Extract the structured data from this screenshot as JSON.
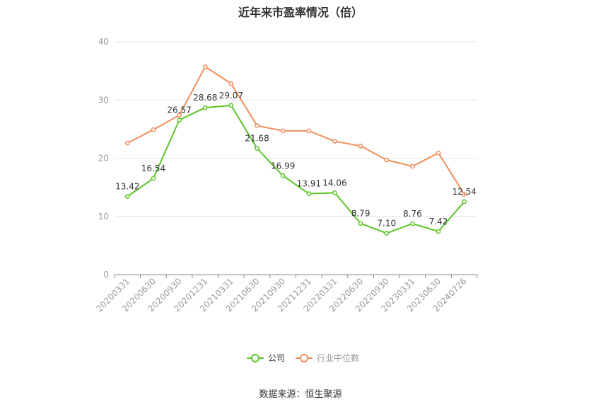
{
  "chart_data": {
    "type": "line",
    "title": "近年来市盈率情况（倍）",
    "categories": [
      "20200331",
      "20200630",
      "20200930",
      "20201231",
      "20210331",
      "20210630",
      "20210930",
      "20211231",
      "20220331",
      "20220630",
      "20220930",
      "20230331",
      "20230630",
      "20240726"
    ],
    "series": [
      {
        "name": "公司",
        "color": "#5ec427",
        "values": [
          13.42,
          16.54,
          26.57,
          28.68,
          29.07,
          21.68,
          16.99,
          13.91,
          14.06,
          8.79,
          7.1,
          8.76,
          7.42,
          12.54
        ],
        "labels": [
          "13.42",
          "16.54",
          "26.57",
          "28.68",
          "29.07",
          "21.68",
          "16.99",
          "13.91",
          "14.06",
          "8.79",
          "7.10",
          "8.76",
          "7.42",
          "12.54"
        ]
      },
      {
        "name": "行业中位数",
        "color": "#f28e5c",
        "values": [
          22.6,
          24.9,
          27.4,
          35.7,
          32.8,
          25.6,
          24.7,
          24.7,
          22.9,
          22.1,
          19.7,
          18.6,
          20.9,
          13.8
        ]
      }
    ],
    "ylim": [
      0,
      40
    ],
    "yticks": [
      0,
      10,
      20,
      30,
      40
    ],
    "grid": true,
    "legend_position": "bottom-center",
    "source": "数据来源：恒生聚源"
  }
}
